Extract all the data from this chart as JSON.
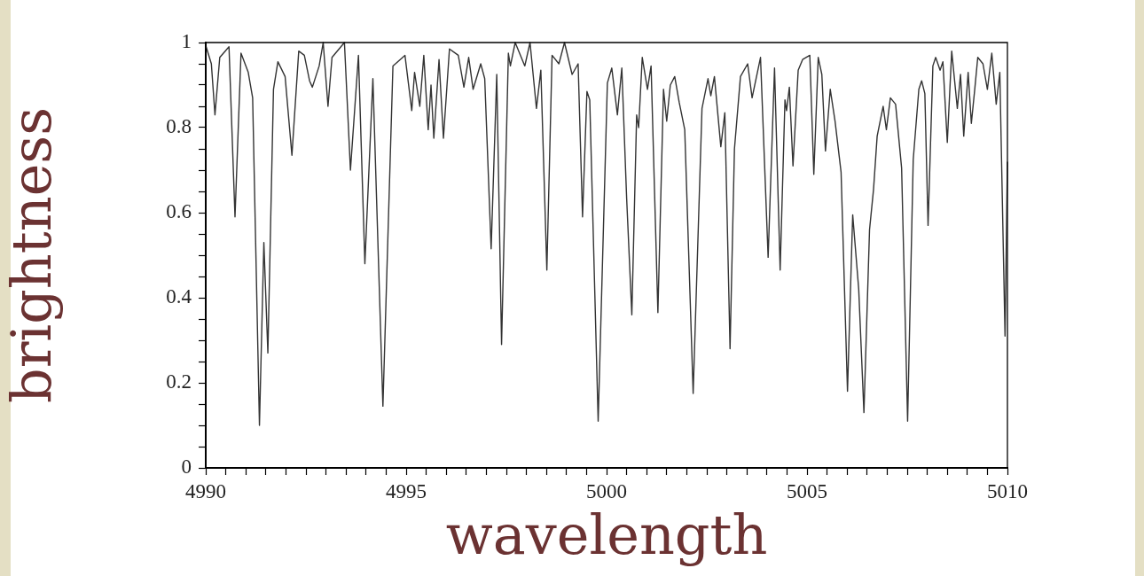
{
  "chart_data": {
    "type": "line",
    "xlabel": "wavelength",
    "ylabel": "brightness",
    "grid": false,
    "legend": false,
    "xlim": [
      4990,
      5010
    ],
    "ylim": [
      0,
      1
    ],
    "xticks": [
      4990,
      {
        "value": 4990.5,
        "label": null
      },
      {
        "value": 4991,
        "label": null
      },
      {
        "value": 4991.5,
        "label": null
      },
      {
        "value": 4992,
        "label": null
      },
      {
        "value": 4992.5,
        "label": null
      },
      {
        "value": 4993,
        "label": null
      },
      {
        "value": 4993.5,
        "label": null
      },
      {
        "value": 4994,
        "label": null
      },
      {
        "value": 4994.5,
        "label": null
      },
      4995,
      {
        "value": 4995.5,
        "label": null
      },
      {
        "value": 4996,
        "label": null
      },
      {
        "value": 4996.5,
        "label": null
      },
      {
        "value": 4997,
        "label": null
      },
      {
        "value": 4997.5,
        "label": null
      },
      {
        "value": 4998,
        "label": null
      },
      {
        "value": 4998.5,
        "label": null
      },
      {
        "value": 4999,
        "label": null
      },
      {
        "value": 4999.5,
        "label": null
      },
      5000,
      {
        "value": 5000.5,
        "label": null
      },
      {
        "value": 5001,
        "label": null
      },
      {
        "value": 5001.5,
        "label": null
      },
      {
        "value": 5002,
        "label": null
      },
      {
        "value": 5002.5,
        "label": null
      },
      {
        "value": 5003,
        "label": null
      },
      {
        "value": 5003.5,
        "label": null
      },
      {
        "value": 5004,
        "label": null
      },
      {
        "value": 5004.5,
        "label": null
      },
      5005,
      {
        "value": 5005.5,
        "label": null
      },
      {
        "value": 5006,
        "label": null
      },
      {
        "value": 5006.5,
        "label": null
      },
      {
        "value": 5007,
        "label": null
      },
      {
        "value": 5007.5,
        "label": null
      },
      {
        "value": 5008,
        "label": null
      },
      {
        "value": 5008.5,
        "label": null
      },
      {
        "value": 5009,
        "label": null
      },
      {
        "value": 5009.5,
        "label": null
      },
      5010
    ],
    "yticks": [
      0,
      {
        "value": 0.05,
        "label": null
      },
      {
        "value": 0.1,
        "label": null
      },
      {
        "value": 0.15,
        "label": null
      },
      0.2,
      {
        "value": 0.25,
        "label": null
      },
      {
        "value": 0.3,
        "label": null
      },
      {
        "value": 0.35,
        "label": null
      },
      0.4,
      {
        "value": 0.45,
        "label": null
      },
      {
        "value": 0.5,
        "label": null
      },
      {
        "value": 0.55,
        "label": null
      },
      0.6,
      {
        "value": 0.65,
        "label": null
      },
      {
        "value": 0.7,
        "label": null
      },
      {
        "value": 0.75,
        "label": null
      },
      0.8,
      {
        "value": 0.85,
        "label": null
      },
      {
        "value": 0.9,
        "label": null
      },
      {
        "value": 0.95,
        "label": null
      },
      1
    ],
    "series": [
      {
        "color": "#333333",
        "x": [
          4990.01,
          4990.14,
          4990.23,
          4990.35,
          4990.58,
          4990.73,
          4990.88,
          4991.06,
          4991.17,
          4991.34,
          4991.45,
          4991.55,
          4991.69,
          4991.8,
          4991.98,
          4992.15,
          4992.32,
          4992.46,
          4992.59,
          4992.66,
          4992.83,
          4992.93,
          4993.05,
          4993.15,
          4993.46,
          4993.61,
          4993.81,
          4993.97,
          4994.17,
          4994.42,
          4994.67,
          4994.97,
          4995.14,
          4995.21,
          4995.34,
          4995.44,
          4995.55,
          4995.62,
          4995.69,
          4995.82,
          4995.93,
          4996.08,
          4996.3,
          4996.44,
          4996.56,
          4996.67,
          4996.86,
          4996.96,
          4997.12,
          4997.26,
          4997.38,
          4997.55,
          4997.6,
          4997.72,
          4997.96,
          4998.09,
          4998.25,
          4998.36,
          4998.51,
          4998.64,
          4998.81,
          4998.95,
          4999.14,
          4999.29,
          4999.4,
          4999.51,
          4999.58,
          4999.79,
          5000.02,
          5000.13,
          5000.27,
          5000.38,
          5000.5,
          5000.63,
          5000.75,
          5000.8,
          5000.89,
          5001.02,
          5001.11,
          5001.28,
          5001.42,
          5001.5,
          5001.59,
          5001.7,
          5001.81,
          5001.95,
          5002.16,
          5002.38,
          5002.53,
          5002.6,
          5002.69,
          5002.85,
          5002.95,
          5003.08,
          5003.19,
          5003.34,
          5003.52,
          5003.63,
          5003.84,
          5004.03,
          5004.19,
          5004.33,
          5004.45,
          5004.49,
          5004.56,
          5004.65,
          5004.78,
          5004.89,
          5005.07,
          5005.17,
          5005.28,
          5005.37,
          5005.46,
          5005.58,
          5005.7,
          5005.85,
          5006.01,
          5006.14,
          5006.29,
          5006.42,
          5006.56,
          5006.66,
          5006.75,
          5006.9,
          5006.98,
          5007.08,
          5007.21,
          5007.36,
          5007.51,
          5007.65,
          5007.79,
          5007.86,
          5007.94,
          5008.02,
          5008.14,
          5008.21,
          5008.32,
          5008.39,
          5008.5,
          5008.61,
          5008.75,
          5008.83,
          5008.91,
          5009.02,
          5009.1,
          5009.19,
          5009.26,
          5009.39,
          5009.5,
          5009.61,
          5009.72,
          5009.81,
          5009.94,
          5010
        ],
        "values": [
          0.99,
          0.95,
          0.83,
          0.965,
          0.99,
          0.59,
          0.975,
          0.93,
          0.87,
          0.1,
          0.53,
          0.27,
          0.89,
          0.955,
          0.92,
          0.735,
          0.98,
          0.97,
          0.91,
          0.895,
          0.945,
          1.0,
          0.85,
          0.965,
          1.0,
          0.7,
          0.97,
          0.48,
          0.915,
          0.145,
          0.945,
          0.97,
          0.84,
          0.93,
          0.85,
          0.97,
          0.795,
          0.9,
          0.775,
          0.96,
          0.775,
          0.985,
          0.97,
          0.895,
          0.965,
          0.89,
          0.95,
          0.915,
          0.515,
          0.925,
          0.29,
          0.975,
          0.945,
          1.0,
          0.945,
          1.0,
          0.845,
          0.935,
          0.465,
          0.97,
          0.95,
          1.0,
          0.925,
          0.95,
          0.59,
          0.885,
          0.865,
          0.11,
          0.905,
          0.94,
          0.83,
          0.94,
          0.635,
          0.36,
          0.83,
          0.8,
          0.965,
          0.89,
          0.945,
          0.365,
          0.89,
          0.815,
          0.9,
          0.92,
          0.86,
          0.795,
          0.175,
          0.845,
          0.915,
          0.875,
          0.92,
          0.755,
          0.835,
          0.28,
          0.75,
          0.92,
          0.95,
          0.87,
          0.965,
          0.495,
          0.94,
          0.465,
          0.865,
          0.84,
          0.895,
          0.71,
          0.935,
          0.96,
          0.97,
          0.69,
          0.965,
          0.925,
          0.745,
          0.89,
          0.815,
          0.695,
          0.18,
          0.595,
          0.42,
          0.13,
          0.56,
          0.655,
          0.78,
          0.85,
          0.795,
          0.87,
          0.855,
          0.705,
          0.11,
          0.725,
          0.89,
          0.91,
          0.88,
          0.57,
          0.945,
          0.965,
          0.935,
          0.955,
          0.765,
          0.98,
          0.845,
          0.925,
          0.78,
          0.93,
          0.81,
          0.895,
          0.965,
          0.95,
          0.89,
          0.975,
          0.855,
          0.93,
          0.31,
          0.72
        ]
      }
    ]
  }
}
